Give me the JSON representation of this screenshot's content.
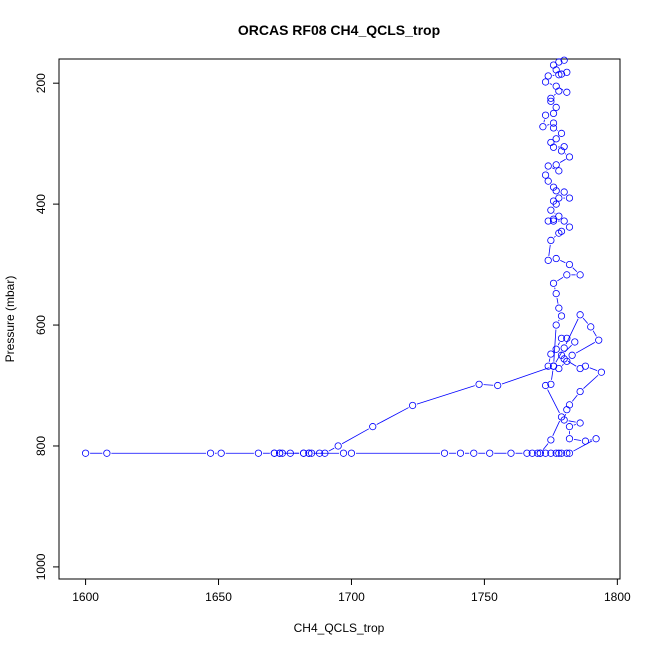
{
  "chart_data": {
    "type": "line",
    "title": "ORCAS RF08 CH4_QCLS_trop",
    "xlabel": "CH4_QCLS_trop",
    "ylabel": "Pressure (mbar)",
    "xlim": [
      1590,
      1801
    ],
    "ylim": [
      160,
      1020
    ],
    "y_inverted": true,
    "grid": false,
    "x_ticks": [
      1600,
      1650,
      1700,
      1750,
      1800
    ],
    "y_ticks": [
      200,
      400,
      600,
      800,
      1000
    ],
    "series_color": "#0000ff",
    "series": [
      {
        "points": [
          [
            1600,
            812
          ],
          [
            1608,
            812
          ],
          [
            1647,
            812
          ],
          [
            1651,
            812
          ],
          [
            1665,
            812
          ],
          [
            1671,
            812
          ],
          [
            1673,
            812
          ],
          [
            1674,
            812
          ],
          [
            1677,
            812
          ],
          [
            1682,
            812
          ],
          [
            1684,
            812
          ],
          [
            1685,
            812
          ],
          [
            1688,
            812
          ],
          [
            1690,
            812
          ],
          [
            1695,
            800
          ],
          [
            1708,
            768
          ],
          [
            1723,
            733
          ],
          [
            1748,
            698
          ],
          [
            1755,
            700
          ],
          [
            1776,
            668
          ],
          [
            1780,
            638
          ],
          [
            1786,
            583
          ],
          [
            1790,
            603
          ],
          [
            1793,
            625
          ],
          [
            1783,
            650
          ],
          [
            1780,
            656
          ],
          [
            1786,
            672
          ],
          [
            1788,
            668
          ],
          [
            1794,
            678
          ],
          [
            1786,
            710
          ],
          [
            1782,
            732
          ],
          [
            1781,
            740
          ],
          [
            1780,
            757
          ],
          [
            1786,
            762
          ],
          [
            1782,
            768
          ],
          [
            1782,
            788
          ],
          [
            1788,
            792
          ],
          [
            1792,
            788
          ],
          [
            1782,
            812
          ],
          [
            1781,
            812
          ],
          [
            1779,
            812
          ],
          [
            1778,
            812
          ],
          [
            1777,
            812
          ],
          [
            1775,
            812
          ],
          [
            1773,
            812
          ],
          [
            1771,
            812
          ],
          [
            1770,
            812
          ],
          [
            1768,
            812
          ],
          [
            1766,
            812
          ],
          [
            1760,
            812
          ],
          [
            1752,
            812
          ],
          [
            1746,
            812
          ],
          [
            1741,
            812
          ],
          [
            1735,
            812
          ],
          [
            1700,
            812
          ],
          [
            1697,
            812
          ],
          [
            1684,
            812
          ],
          [
            1682,
            812
          ],
          [
            1673,
            812
          ],
          [
            1671,
            812
          ]
        ]
      },
      {
        "points": [
          [
            1771,
            812
          ],
          [
            1775,
            790
          ],
          [
            1779,
            752
          ],
          [
            1773,
            700
          ],
          [
            1775,
            698
          ],
          [
            1776,
            668
          ],
          [
            1774,
            668
          ],
          [
            1775,
            648
          ],
          [
            1777,
            640
          ],
          [
            1779,
            622
          ],
          [
            1781,
            622
          ],
          [
            1784,
            628
          ],
          [
            1779,
            650
          ],
          [
            1781,
            660
          ],
          [
            1778,
            672
          ],
          [
            1776,
            668
          ],
          [
            1777,
            600
          ],
          [
            1779,
            585
          ],
          [
            1778,
            572
          ],
          [
            1777,
            548
          ],
          [
            1776,
            531
          ],
          [
            1781,
            517
          ],
          [
            1786,
            517
          ],
          [
            1782,
            500
          ],
          [
            1777,
            490
          ],
          [
            1774,
            493
          ],
          [
            1775,
            460
          ],
          [
            1778,
            448
          ],
          [
            1779,
            445
          ],
          [
            1782,
            438
          ],
          [
            1780,
            428
          ],
          [
            1776,
            428
          ],
          [
            1774,
            428
          ],
          [
            1776,
            425
          ],
          [
            1778,
            420
          ],
          [
            1775,
            410
          ],
          [
            1777,
            400
          ],
          [
            1776,
            395
          ],
          [
            1778,
            390
          ],
          [
            1782,
            390
          ],
          [
            1780,
            380
          ],
          [
            1777,
            378
          ],
          [
            1776,
            372
          ],
          [
            1774,
            362
          ],
          [
            1773,
            352
          ],
          [
            1774,
            337
          ],
          [
            1778,
            345
          ],
          [
            1777,
            335
          ],
          [
            1782,
            322
          ],
          [
            1779,
            312
          ],
          [
            1780,
            305
          ],
          [
            1776,
            306
          ],
          [
            1775,
            298
          ],
          [
            1777,
            292
          ],
          [
            1779,
            283
          ],
          [
            1776,
            274
          ],
          [
            1776,
            266
          ],
          [
            1772,
            272
          ],
          [
            1773,
            253
          ],
          [
            1776,
            250
          ],
          [
            1777,
            240
          ],
          [
            1775,
            230
          ],
          [
            1775,
            225
          ],
          [
            1778,
            213
          ],
          [
            1781,
            215
          ],
          [
            1777,
            205
          ],
          [
            1773,
            198
          ],
          [
            1774,
            188
          ],
          [
            1778,
            186
          ],
          [
            1779,
            185
          ],
          [
            1781,
            182
          ],
          [
            1777,
            178
          ],
          [
            1776,
            170
          ],
          [
            1778,
            165
          ],
          [
            1780,
            162
          ]
        ]
      }
    ]
  }
}
